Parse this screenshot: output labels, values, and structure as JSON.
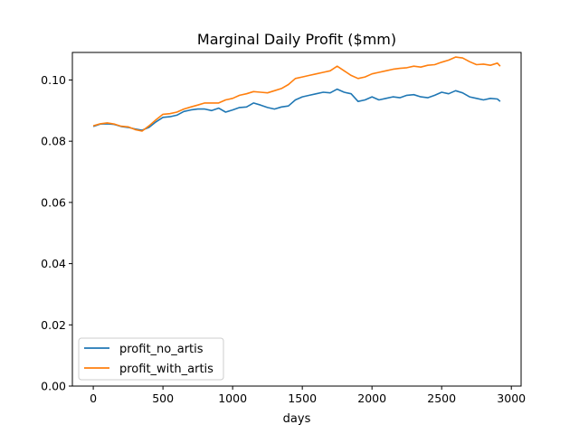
{
  "chart_data": {
    "type": "line",
    "title": "Marginal Daily Profit ($mm)",
    "xlabel": "days",
    "ylabel": "",
    "xlim": [
      -150,
      3070
    ],
    "ylim": [
      0.0,
      0.109
    ],
    "xticks": [
      0,
      500,
      1000,
      1500,
      2000,
      2500,
      3000
    ],
    "xtick_labels": [
      "0",
      "500",
      "1000",
      "1500",
      "2000",
      "2500",
      "3000"
    ],
    "yticks": [
      0.0,
      0.02,
      0.04,
      0.06,
      0.08,
      0.1
    ],
    "ytick_labels": [
      "0.00",
      "0.02",
      "0.04",
      "0.06",
      "0.08",
      "0.10"
    ],
    "grid": false,
    "legend": "lower-left",
    "series": [
      {
        "name": "profit_no_artis",
        "color": "#1f77b4",
        "x": [
          0,
          50,
          100,
          150,
          200,
          250,
          300,
          350,
          400,
          450,
          500,
          550,
          600,
          650,
          700,
          750,
          800,
          850,
          900,
          950,
          1000,
          1050,
          1100,
          1150,
          1200,
          1250,
          1300,
          1350,
          1400,
          1450,
          1500,
          1550,
          1600,
          1650,
          1700,
          1750,
          1800,
          1850,
          1900,
          1950,
          2000,
          2050,
          2100,
          2150,
          2200,
          2250,
          2300,
          2350,
          2400,
          2450,
          2500,
          2550,
          2600,
          2650,
          2700,
          2750,
          2800,
          2850,
          2900,
          2920
        ],
        "y": [
          0.0848,
          0.0856,
          0.0857,
          0.0855,
          0.0848,
          0.0845,
          0.084,
          0.0836,
          0.0845,
          0.0863,
          0.0878,
          0.088,
          0.0885,
          0.0897,
          0.0902,
          0.0905,
          0.0905,
          0.09,
          0.0908,
          0.0895,
          0.0902,
          0.091,
          0.0912,
          0.0925,
          0.0918,
          0.091,
          0.0905,
          0.0912,
          0.0915,
          0.0935,
          0.0945,
          0.095,
          0.0955,
          0.096,
          0.0958,
          0.097,
          0.096,
          0.0955,
          0.093,
          0.0935,
          0.0945,
          0.0935,
          0.094,
          0.0945,
          0.0942,
          0.095,
          0.0952,
          0.0945,
          0.0942,
          0.095,
          0.096,
          0.0955,
          0.0965,
          0.0958,
          0.0945,
          0.094,
          0.0935,
          0.094,
          0.0938,
          0.093
        ]
      },
      {
        "name": "profit_with_artis",
        "color": "#ff7f0e",
        "x": [
          0,
          50,
          100,
          150,
          200,
          250,
          300,
          350,
          400,
          450,
          500,
          550,
          600,
          650,
          700,
          750,
          800,
          850,
          900,
          950,
          1000,
          1050,
          1100,
          1150,
          1200,
          1250,
          1300,
          1350,
          1400,
          1450,
          1500,
          1550,
          1600,
          1650,
          1700,
          1750,
          1800,
          1850,
          1900,
          1950,
          2000,
          2050,
          2100,
          2150,
          2200,
          2250,
          2300,
          2350,
          2400,
          2450,
          2500,
          2550,
          2600,
          2650,
          2700,
          2750,
          2800,
          2850,
          2900,
          2920
        ],
        "y": [
          0.085,
          0.0857,
          0.086,
          0.0856,
          0.0849,
          0.0847,
          0.0838,
          0.0833,
          0.085,
          0.087,
          0.0888,
          0.089,
          0.0895,
          0.0905,
          0.0912,
          0.0918,
          0.0925,
          0.0925,
          0.0925,
          0.0935,
          0.094,
          0.095,
          0.0955,
          0.0962,
          0.096,
          0.0958,
          0.0965,
          0.0972,
          0.0985,
          0.1005,
          0.101,
          0.1015,
          0.102,
          0.1025,
          0.103,
          0.1045,
          0.103,
          0.1015,
          0.1005,
          0.101,
          0.102,
          0.1025,
          0.103,
          0.1035,
          0.1038,
          0.104,
          0.1045,
          0.1042,
          0.1048,
          0.105,
          0.1058,
          0.1065,
          0.1075,
          0.1072,
          0.106,
          0.105,
          0.1052,
          0.1048,
          0.1055,
          0.1045
        ]
      }
    ]
  }
}
